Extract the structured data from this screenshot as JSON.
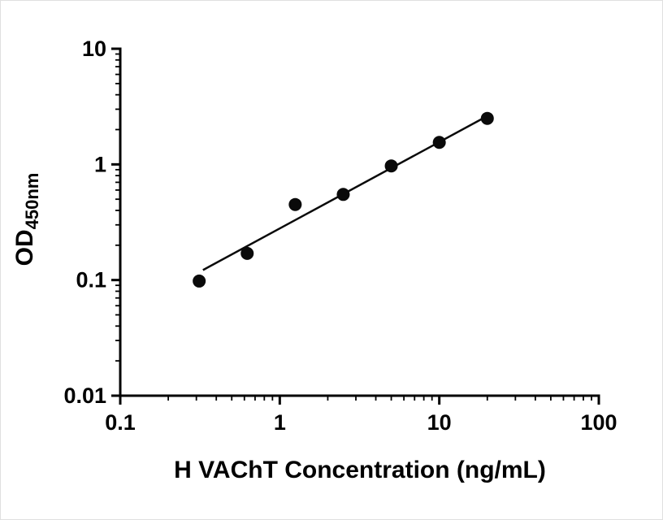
{
  "chart_data": {
    "type": "scatter",
    "title": "",
    "xlabel": "H VAChT Concentration (ng/mL)",
    "ylabel_main": "OD",
    "ylabel_sub": "450nm",
    "xscale": "log",
    "yscale": "log",
    "xlim": [
      0.1,
      100
    ],
    "ylim": [
      0.01,
      10
    ],
    "x_ticks": [
      0.1,
      1,
      10,
      100
    ],
    "x_tick_labels": [
      "0.1",
      "1",
      "10",
      "100"
    ],
    "y_ticks": [
      0.01,
      0.1,
      1,
      10
    ],
    "y_tick_labels": [
      "0.01",
      "0.1",
      "1",
      "10"
    ],
    "grid": false,
    "legend": "none",
    "points": [
      {
        "x": 0.3125,
        "y": 0.098
      },
      {
        "x": 0.625,
        "y": 0.17
      },
      {
        "x": 1.25,
        "y": 0.45
      },
      {
        "x": 2.5,
        "y": 0.55
      },
      {
        "x": 5,
        "y": 0.97
      },
      {
        "x": 10,
        "y": 1.55
      },
      {
        "x": 20,
        "y": 2.5
      }
    ],
    "fit_line": {
      "x1": 0.33,
      "y1": 0.122,
      "x2": 19.8,
      "y2": 2.6
    },
    "marker_color": "#0a0a0a",
    "line_color": "#0a0a0a",
    "axis_color": "#000000"
  }
}
